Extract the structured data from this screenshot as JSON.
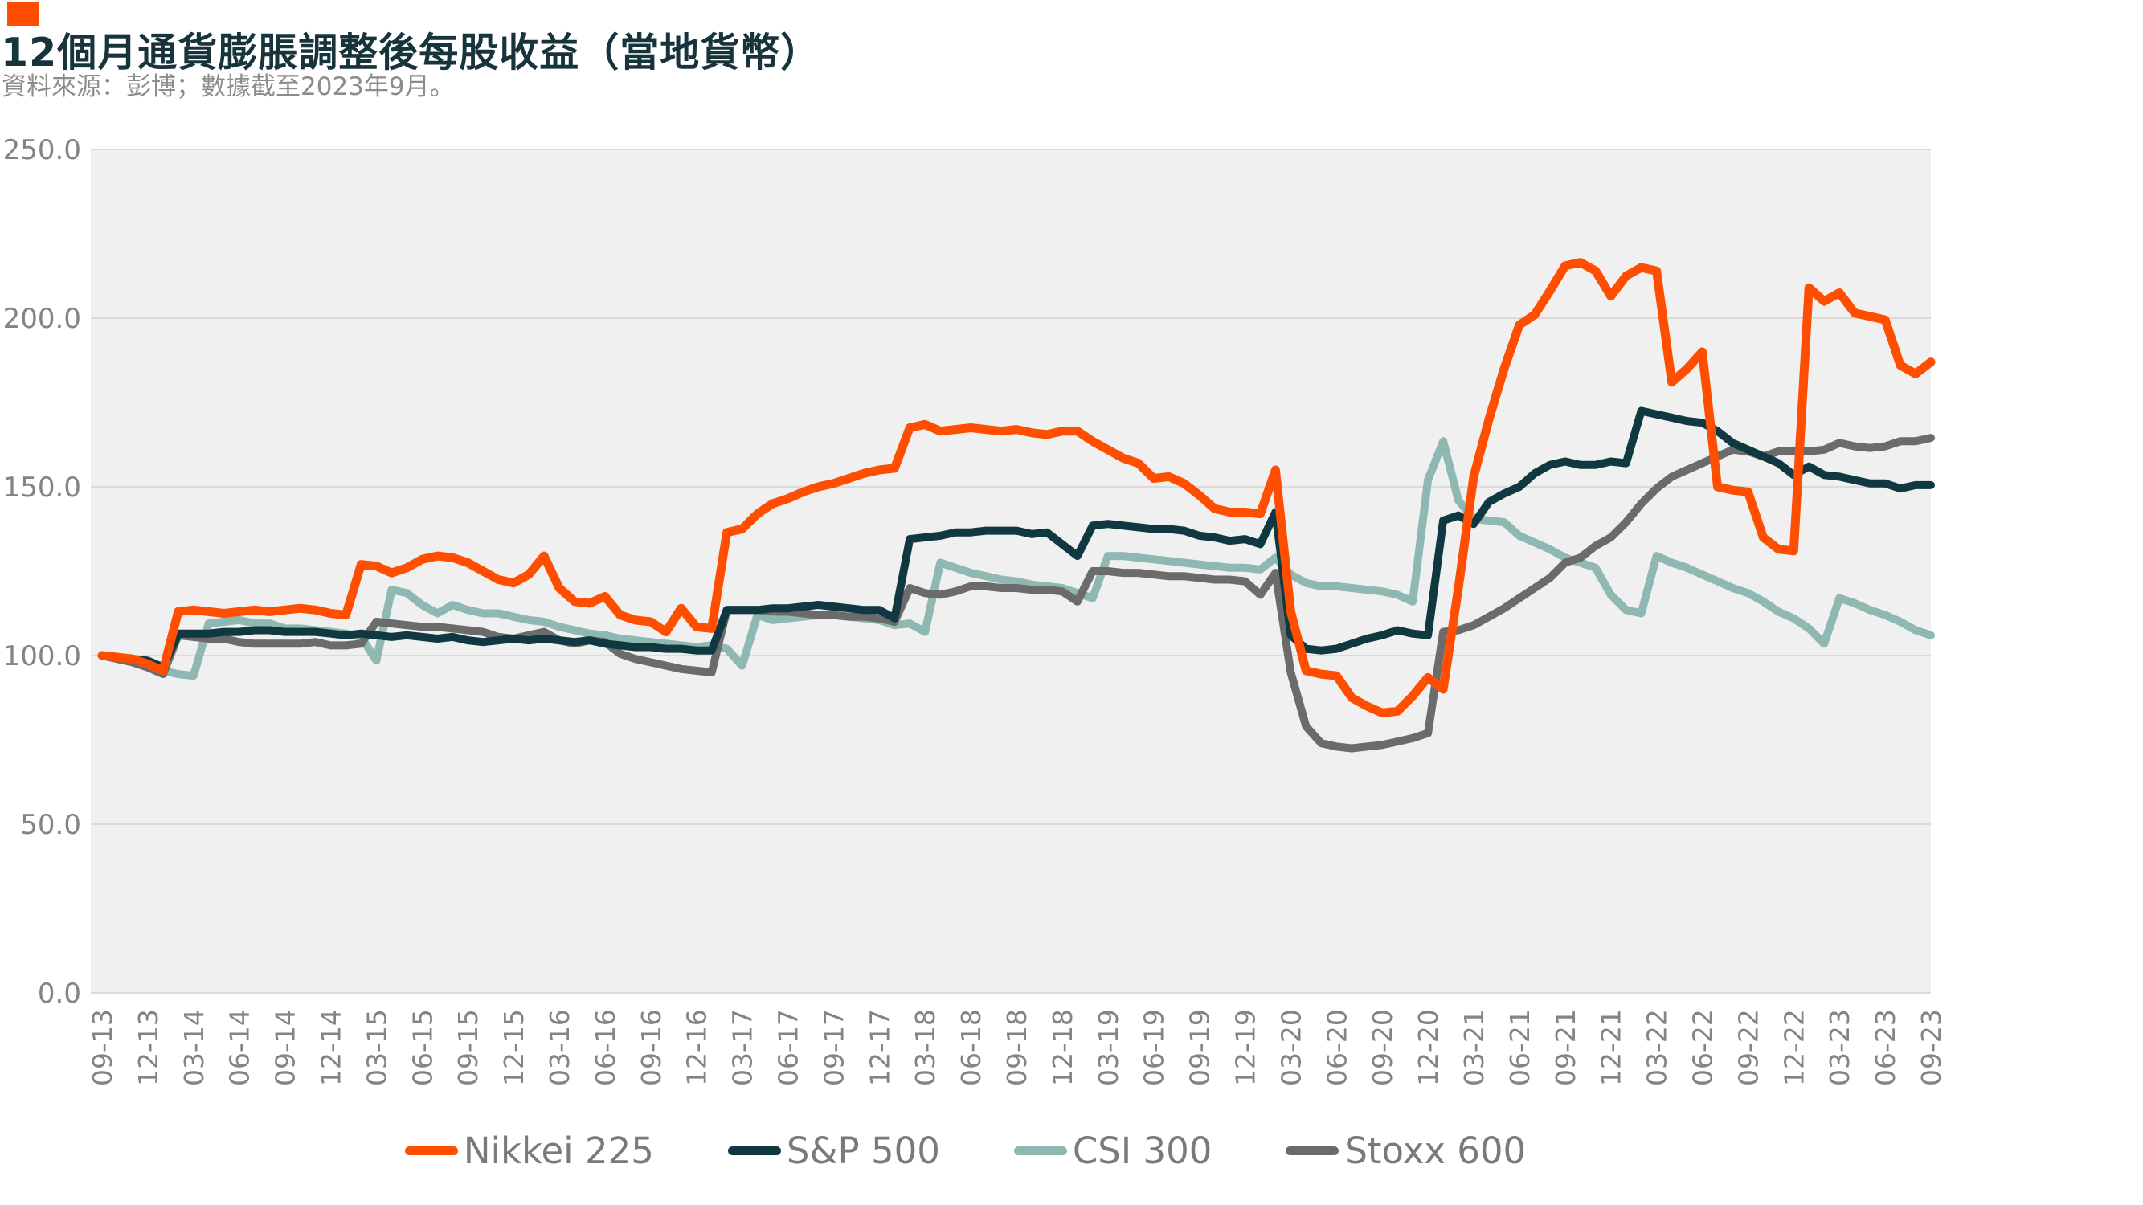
{
  "header": {
    "accent_bar_color": "#FF4E00",
    "title": "12個月通貨膨脹調整後每股收益（當地貨幣）",
    "subtitle": "資料來源：彭博；數據截至2023年9月。"
  },
  "chart_data": {
    "type": "line",
    "title": "12個月通貨膨脹調整後每股收益（當地貨幣）",
    "subtitle": "資料來源：彭博；數據截至2023年9月。",
    "x_axis": {
      "unit": "month",
      "start": "09-2013",
      "end": "09-2023",
      "points_per_series": 121,
      "tick_every_months": 3,
      "tick_labels": [
        "09-13",
        "12-13",
        "03-14",
        "06-14",
        "09-14",
        "12-14",
        "03-15",
        "06-15",
        "09-15",
        "12-15",
        "03-16",
        "06-16",
        "09-16",
        "12-16",
        "03-17",
        "06-17",
        "09-17",
        "12-17",
        "03-18",
        "06-18",
        "09-18",
        "12-18",
        "03-19",
        "06-19",
        "09-19",
        "12-19",
        "03-20",
        "06-20",
        "09-20",
        "12-20",
        "03-21",
        "06-21",
        "09-21",
        "12-21",
        "03-22",
        "06-22",
        "09-22",
        "12-22",
        "03-23",
        "06-23",
        "09-23"
      ]
    },
    "y_axis": {
      "ylim": [
        0,
        250
      ],
      "ticks": [
        0.0,
        50.0,
        100.0,
        150.0,
        200.0,
        250.0
      ],
      "tick_decimals": 1
    },
    "grid": "horizontal",
    "legend_position": "bottom",
    "plot_bg_color": "#F0F0F0",
    "grid_color": "#DBDBDB",
    "axis_label_color": "#848484",
    "series": [
      {
        "name": "Nikkei 225",
        "color": "#FF4E00",
        "values": [
          100,
          99.5,
          99,
          97.5,
          95.5,
          113,
          113.5,
          113,
          112.5,
          113,
          113.5,
          113,
          113.5,
          114,
          113.5,
          112.5,
          112,
          127,
          126.5,
          124.5,
          126,
          128.5,
          129.5,
          129,
          127.5,
          125,
          122.5,
          121.5,
          124,
          129.5,
          120,
          116,
          115.5,
          117.5,
          112,
          110.5,
          110,
          107,
          114,
          108.5,
          108,
          136.5,
          137.5,
          142,
          145,
          146.5,
          148.5,
          150,
          151,
          152.5,
          154,
          155,
          155.5,
          167.5,
          168.5,
          166.5,
          167,
          167.5,
          167,
          166.5,
          167,
          166,
          165.5,
          166.5,
          166.5,
          163.5,
          161,
          158.5,
          157,
          152.5,
          153,
          151,
          147.5,
          143.5,
          142.5,
          142.5,
          142,
          155,
          113,
          95.5,
          94.5,
          94,
          87.5,
          85,
          83,
          83.5,
          88,
          93.5,
          90,
          120,
          153,
          170,
          185,
          198,
          201,
          208,
          215.5,
          216.5,
          214,
          206.5,
          212.5,
          215,
          214,
          181,
          185,
          190,
          150,
          149,
          148.5,
          135,
          131.5,
          131,
          209,
          205,
          207.5,
          201.5,
          200.5,
          199.5,
          186,
          183.5,
          187
        ]
      },
      {
        "name": "S&P 500",
        "color": "#0F3840",
        "values": [
          100,
          99.5,
          99,
          98.5,
          96.5,
          106.5,
          106.5,
          106.5,
          107,
          107,
          107.5,
          107.5,
          107,
          107,
          107,
          106.5,
          106,
          106.5,
          106,
          105.5,
          106,
          105.5,
          105,
          105.5,
          104.5,
          104,
          104.5,
          105,
          104.5,
          105,
          104.5,
          104,
          104.5,
          103.5,
          103,
          102.5,
          102.5,
          102,
          102,
          101.5,
          101.5,
          113.5,
          113.5,
          113.5,
          114,
          114,
          114.5,
          115,
          114.5,
          114,
          113.5,
          113.5,
          111,
          134.5,
          135,
          135.5,
          136.5,
          136.5,
          137,
          137,
          137,
          136,
          136.5,
          133,
          129.5,
          138.5,
          139,
          138.5,
          138,
          137.5,
          137.5,
          137,
          135.5,
          135,
          134,
          134.5,
          133,
          142.5,
          106,
          102,
          101.5,
          102,
          103.5,
          105,
          106,
          107.5,
          106.5,
          106,
          140,
          141.5,
          139,
          145.5,
          148,
          150,
          154,
          156.5,
          157.5,
          156.5,
          156.5,
          157.5,
          157,
          172.5,
          171.5,
          170.5,
          169.5,
          169,
          166.5,
          163,
          161,
          159,
          157,
          153.5,
          156,
          153.5,
          153,
          152,
          151,
          151,
          149.5,
          150.5,
          150.5
        ]
      },
      {
        "name": "CSI 300",
        "color": "#8FB8B2",
        "values": [
          100,
          99.5,
          98.5,
          97.5,
          95.5,
          94.5,
          94,
          109.5,
          110,
          110.5,
          109.5,
          109.5,
          108,
          108,
          107.5,
          107,
          106.5,
          105.5,
          98.5,
          119.5,
          118.5,
          115,
          112.5,
          115,
          113.5,
          112.5,
          112.5,
          111.5,
          110.5,
          110,
          108.5,
          107.5,
          106.5,
          106,
          105,
          104.5,
          104,
          103.5,
          103,
          102.5,
          103,
          102,
          97,
          112,
          110.5,
          111,
          111.5,
          112,
          112,
          111.5,
          111,
          110.5,
          109,
          109.5,
          107,
          127.5,
          126,
          124.5,
          123.5,
          122.5,
          122,
          121,
          120.5,
          120,
          118.5,
          117,
          129.5,
          129.5,
          129,
          128.5,
          128,
          127.5,
          127,
          126.5,
          126,
          126,
          125.5,
          129,
          124,
          121.5,
          120.5,
          120.5,
          120,
          119.5,
          119,
          118,
          116,
          152,
          163.5,
          146,
          140.5,
          140,
          139.5,
          135.5,
          133.5,
          131.5,
          129,
          127.5,
          126,
          118,
          113.5,
          112.5,
          129.5,
          127.5,
          126,
          124,
          122,
          120,
          118.5,
          116,
          113,
          111,
          108,
          103.5,
          117,
          115.5,
          113.5,
          112,
          110,
          107.5,
          106
        ]
      },
      {
        "name": "Stoxx 600",
        "color": "#6B6B6B",
        "values": [
          100,
          99,
          98,
          96.5,
          94.5,
          106,
          105.5,
          105,
          105,
          104,
          103.5,
          103.5,
          103.5,
          103.5,
          104,
          103,
          103,
          103.5,
          110,
          109.5,
          109,
          108.5,
          108.5,
          108,
          107.5,
          107,
          105.5,
          105,
          106,
          107,
          104.5,
          103.5,
          104.5,
          104,
          100.5,
          99,
          98,
          97,
          96,
          95.5,
          95,
          113.5,
          113.5,
          113.5,
          113,
          113,
          112.5,
          112,
          112,
          111.5,
          111.5,
          111,
          110,
          120,
          118.5,
          118,
          119,
          120.5,
          120.5,
          120,
          120,
          119.5,
          119.5,
          119,
          116,
          125,
          125,
          124.5,
          124.5,
          124,
          123.5,
          123.5,
          123,
          122.5,
          122.5,
          122,
          118,
          124.5,
          95,
          79,
          74,
          73,
          72.5,
          73,
          73.5,
          74.5,
          75.5,
          77,
          107,
          107.5,
          109,
          111.5,
          114,
          117,
          120,
          123,
          127.5,
          129,
          132.5,
          135,
          139.5,
          145,
          149.5,
          153,
          155,
          157,
          159,
          161,
          160.5,
          159,
          160.5,
          160.5,
          160.5,
          161,
          163,
          162,
          161.5,
          162,
          163.5,
          163.5,
          164.5
        ]
      }
    ]
  }
}
